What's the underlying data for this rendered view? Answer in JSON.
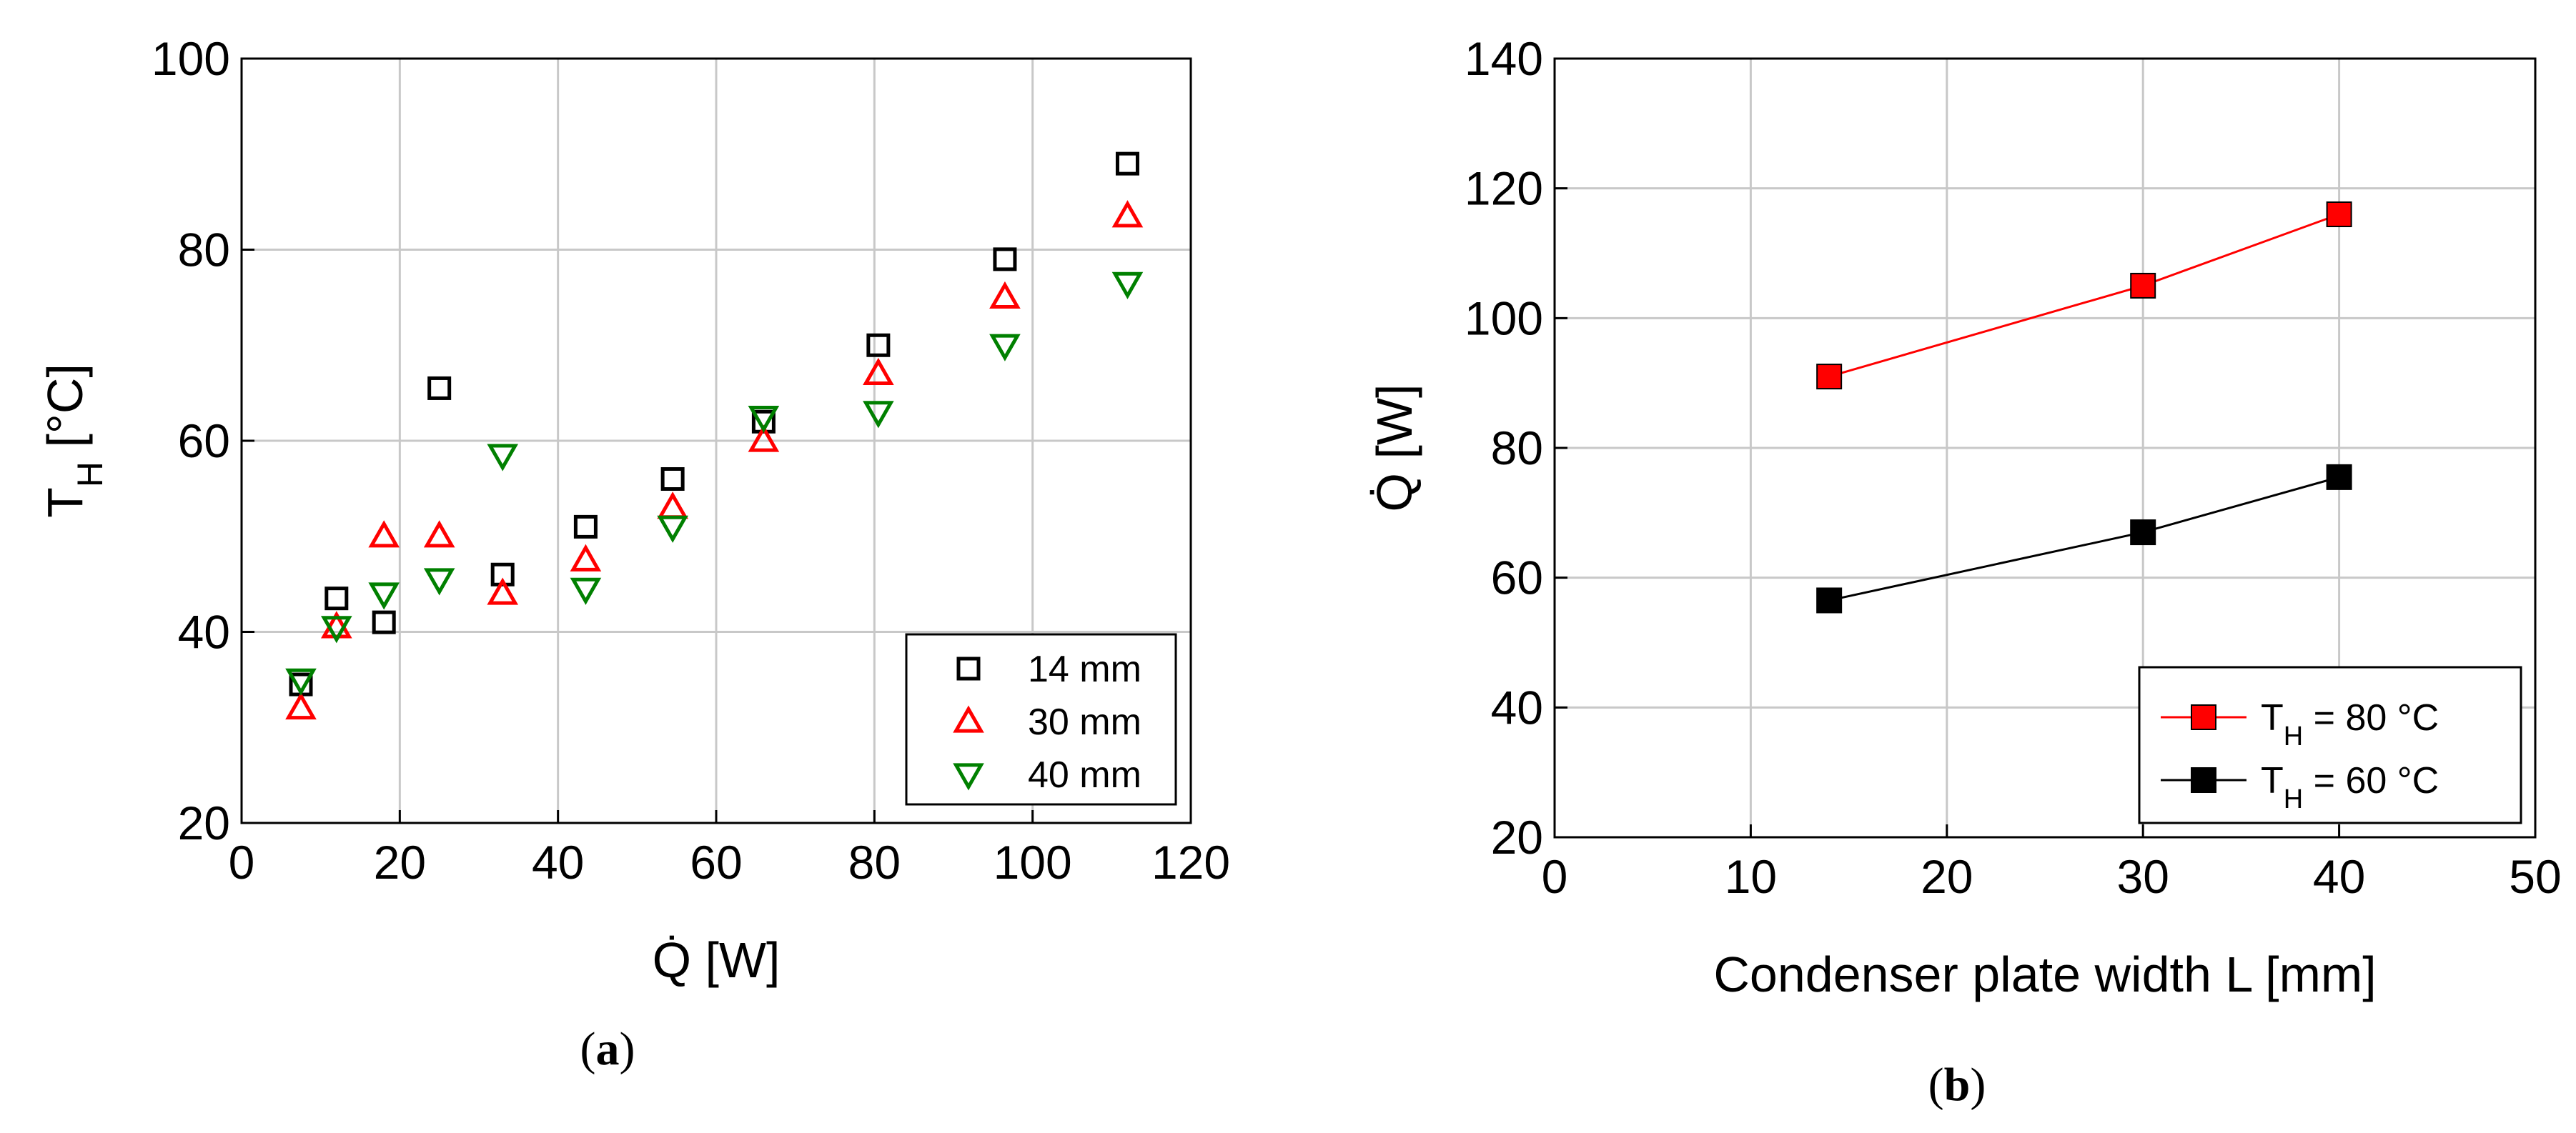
{
  "chart_data": [
    {
      "type": "scatter",
      "panel_label": "(a)",
      "panel_letter": "a",
      "xlabel": "Q̇ [W]",
      "ylabel": "T",
      "ylabel_sub": "H",
      "ylabel_unit": " [°C]",
      "xlim": [
        0,
        120
      ],
      "ylim": [
        20,
        100
      ],
      "xticks": [
        0,
        20,
        40,
        60,
        80,
        100,
        120
      ],
      "yticks": [
        20,
        40,
        60,
        80,
        100
      ],
      "grid": true,
      "legend_position": "bottom-right",
      "series": [
        {
          "name": "14 mm",
          "marker": "square",
          "color": "#000000",
          "x": [
            7.5,
            12,
            18,
            25,
            33,
            43.5,
            54.5,
            66,
            80.5,
            96.5,
            112
          ],
          "y": [
            34.5,
            43.5,
            41,
            65.5,
            46,
            51,
            56,
            62,
            70,
            79,
            89
          ]
        },
        {
          "name": "30 mm",
          "marker": "triangle-up",
          "color": "#ff0000",
          "x": [
            7.5,
            12,
            18,
            25,
            33,
            43.5,
            54.5,
            66,
            80.5,
            96.5,
            112
          ],
          "y": [
            32,
            40.5,
            50,
            50,
            44,
            47.5,
            53,
            60,
            67,
            75,
            83.5
          ]
        },
        {
          "name": "40 mm",
          "marker": "triangle-down",
          "color": "#008000",
          "x": [
            7.5,
            12,
            18,
            25,
            33,
            43.5,
            54.5,
            66,
            80.5,
            96.5,
            112
          ],
          "y": [
            35,
            40.5,
            44,
            45.5,
            58.5,
            44.5,
            51,
            62.5,
            63,
            70,
            76.5
          ]
        }
      ]
    },
    {
      "type": "line",
      "panel_label": "(b)",
      "panel_letter": "b",
      "xlabel": "Condenser plate width L [mm]",
      "ylabel": "Q̇ [W]",
      "xlim": [
        0,
        50
      ],
      "ylim": [
        20,
        140
      ],
      "xticks": [
        0,
        10,
        20,
        30,
        40,
        50
      ],
      "yticks": [
        20,
        40,
        60,
        80,
        100,
        120,
        140
      ],
      "grid": true,
      "legend_position": "bottom-right",
      "series": [
        {
          "name": "T",
          "name_sub": "H",
          "name_rest": " = 80 °C",
          "marker": "square-filled",
          "color": "#ff0000",
          "x": [
            14,
            30,
            40
          ],
          "y": [
            91,
            105,
            116
          ]
        },
        {
          "name": "T",
          "name_sub": "H",
          "name_rest": " = 60 °C",
          "marker": "square-filled",
          "color": "#000000",
          "x": [
            14,
            30,
            40
          ],
          "y": [
            56.5,
            67,
            75.5
          ]
        }
      ]
    }
  ]
}
